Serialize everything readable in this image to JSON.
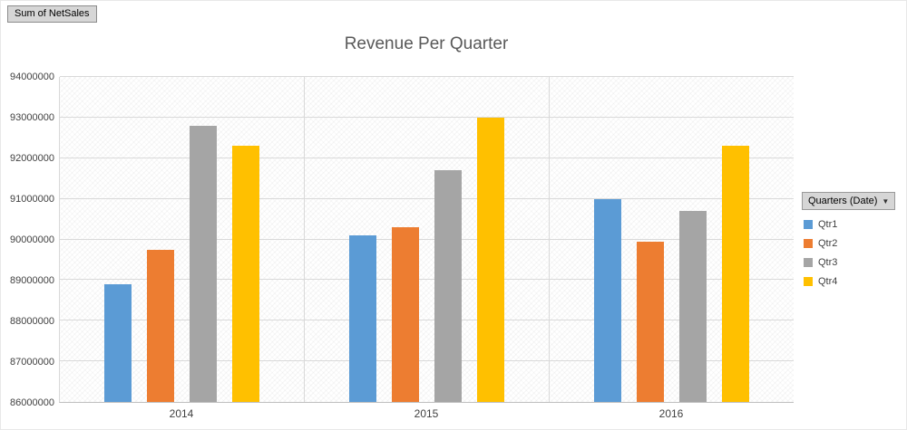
{
  "field_button": {
    "label": "Sum of NetSales"
  },
  "legend": {
    "field_label": "Quarters (Date)",
    "dropdown_icon": "▼",
    "items": [
      {
        "label": "Qtr1",
        "color": "#5B9BD5"
      },
      {
        "label": "Qtr2",
        "color": "#ED7D31"
      },
      {
        "label": "Qtr3",
        "color": "#A5A5A5"
      },
      {
        "label": "Qtr4",
        "color": "#FFC000"
      }
    ]
  },
  "chart_data": {
    "type": "bar",
    "title": "Revenue Per Quarter",
    "categories": [
      "2014",
      "2015",
      "2016"
    ],
    "series": [
      {
        "name": "Qtr1",
        "color": "#5B9BD5",
        "values": [
          88900000,
          90100000,
          91000000
        ]
      },
      {
        "name": "Qtr2",
        "color": "#ED7D31",
        "values": [
          89750000,
          90300000,
          89950000
        ]
      },
      {
        "name": "Qtr3",
        "color": "#A5A5A5",
        "values": [
          92800000,
          91700000,
          90700000
        ]
      },
      {
        "name": "Qtr4",
        "color": "#FFC000",
        "values": [
          92300000,
          93000000,
          92300000
        ]
      }
    ],
    "ylim": [
      86000000,
      94000000
    ],
    "ytick_step": 1000000,
    "grid": true,
    "legend_position": "right"
  }
}
